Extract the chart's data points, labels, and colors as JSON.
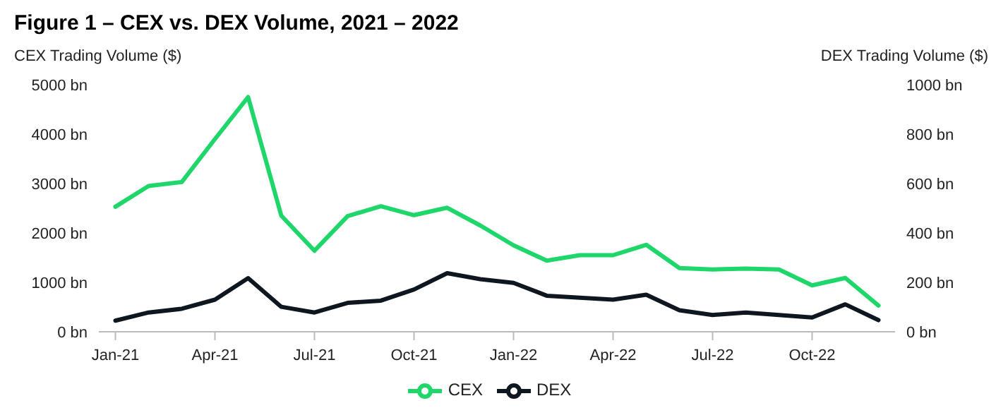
{
  "chart_data": {
    "type": "line",
    "title": "Figure 1 – CEX vs. DEX Volume, 2021 – 2022",
    "ylabel": "CEX Trading Volume ($)",
    "y2label": "DEX Trading Volume ($)",
    "categories": [
      "Jan-21",
      null,
      null,
      "Apr-21",
      null,
      null,
      "Jul-21",
      null,
      null,
      "Oct-21",
      null,
      null,
      "Jan-22",
      null,
      null,
      "Apr-22",
      null,
      null,
      "Jul-22",
      null,
      null,
      "Oct-22",
      null,
      null
    ],
    "series": [
      {
        "name": "CEX",
        "color": "#1fd66b",
        "values": [
          2530,
          2950,
          3030,
          3900,
          4750,
          2350,
          1640,
          2340,
          2540,
          2360,
          2510,
          2150,
          1750,
          1440,
          1550,
          1550,
          1760,
          1290,
          1260,
          1280,
          1260,
          940,
          1090,
          530
        ]
      },
      {
        "name": "DEX",
        "color": "#0e1620",
        "axis": "y2",
        "values": [
          45,
          78,
          93,
          130,
          217,
          101,
          78,
          117,
          126,
          171,
          237,
          213,
          198,
          146,
          138,
          130,
          150,
          87,
          68,
          78,
          68,
          58,
          111,
          47
        ]
      }
    ],
    "ylim": [
      0,
      5000
    ],
    "yticks": [
      {
        "value": 0,
        "label": "0 bn"
      },
      {
        "value": 1000,
        "label": "1000 bn"
      },
      {
        "value": 2000,
        "label": "2000 bn"
      },
      {
        "value": 3000,
        "label": "3000 bn"
      },
      {
        "value": 4000,
        "label": "4000 bn"
      },
      {
        "value": 5000,
        "label": "5000 bn"
      }
    ],
    "y2lim": [
      0,
      1000
    ],
    "y2ticks": [
      {
        "value": 0,
        "label": "0 bn"
      },
      {
        "value": 200,
        "label": "200 bn"
      },
      {
        "value": 400,
        "label": "400 bn"
      },
      {
        "value": 600,
        "label": "600 bn"
      },
      {
        "value": 800,
        "label": "800 bn"
      },
      {
        "value": 1000,
        "label": "1000 bn"
      }
    ],
    "grid": false,
    "legend": "bottom",
    "marker": "none",
    "line_style": "solid"
  }
}
